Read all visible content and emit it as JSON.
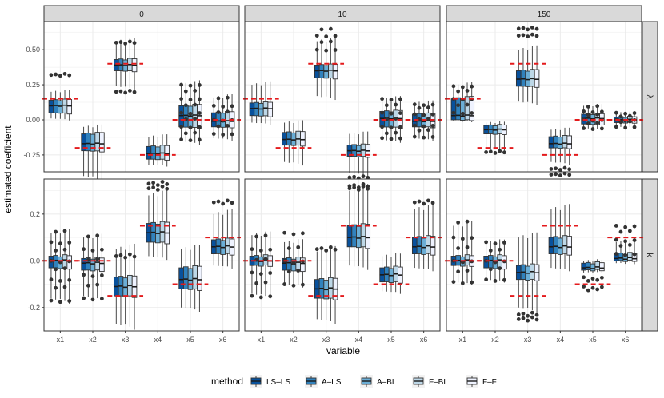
{
  "chart_data": {
    "type": "boxplot",
    "xlabel": "variable",
    "ylabel": "estimated coefficient",
    "categories": [
      "x1",
      "x2",
      "x3",
      "x4",
      "x5",
      "x6"
    ],
    "columns": [
      "0",
      "10",
      "150"
    ],
    "rows": [
      {
        "label": "λ",
        "ylim": [
          -0.37,
          0.7
        ],
        "ticks": [
          -0.25,
          0.0,
          0.25,
          0.5
        ],
        "tick_labels": [
          "-0.25",
          "0.00",
          "0.25",
          "0.50"
        ]
      },
      {
        "label": "k",
        "ylim": [
          -0.3,
          0.35
        ],
        "ticks": [
          -0.2,
          0.0,
          0.2
        ],
        "tick_labels": [
          "-0.2",
          "0.0",
          "0.2"
        ]
      }
    ],
    "legend": {
      "title": "method",
      "position": "bottom",
      "entries": [
        "LS–LS",
        "A–LS",
        "A–BL",
        "F–BL",
        "F–F"
      ],
      "colors": [
        "#08519c",
        "#3182bd",
        "#6baed6",
        "#bdd7e7",
        "#eff3ff"
      ]
    },
    "true_values": {
      "λ": [
        0.15,
        -0.2,
        0.4,
        -0.25,
        0.0,
        0.0
      ],
      "k": [
        0.0,
        0.0,
        -0.15,
        0.15,
        -0.1,
        0.1
      ]
    },
    "panels": [
      {
        "row": 0,
        "col": 0,
        "boxes": [
          {
            "q1": 0.05,
            "med": 0.1,
            "q3": 0.14,
            "lo": 0.01,
            "hi": 0.2,
            "out": [
              0.32
            ]
          },
          {
            "q1": -0.22,
            "med": -0.17,
            "q3": -0.1,
            "lo": -0.4,
            "hi": -0.05,
            "out": []
          },
          {
            "q1": 0.35,
            "med": 0.39,
            "q3": 0.43,
            "lo": 0.24,
            "hi": 0.56,
            "out": [
              0.2,
              0.55
            ]
          },
          {
            "q1": -0.28,
            "med": -0.24,
            "q3": -0.19,
            "lo": -0.32,
            "hi": -0.12,
            "out": []
          },
          {
            "q1": -0.05,
            "med": 0.03,
            "q3": 0.1,
            "lo": -0.15,
            "hi": 0.25,
            "out": [
              -0.14,
              -0.1,
              -0.05,
              0.0,
              0.05,
              0.1,
              0.15,
              0.2,
              0.25
            ]
          },
          {
            "q1": -0.05,
            "med": -0.01,
            "q3": 0.05,
            "lo": -0.13,
            "hi": 0.16,
            "out": [
              -0.1,
              -0.05,
              0.0,
              0.05,
              0.1,
              0.15
            ]
          }
        ]
      },
      {
        "row": 0,
        "col": 1,
        "boxes": [
          {
            "q1": 0.03,
            "med": 0.08,
            "q3": 0.12,
            "lo": -0.02,
            "hi": 0.25,
            "out": []
          },
          {
            "q1": -0.18,
            "med": -0.14,
            "q3": -0.09,
            "lo": -0.3,
            "hi": -0.02,
            "out": []
          },
          {
            "q1": 0.3,
            "med": 0.35,
            "q3": 0.39,
            "lo": 0.17,
            "hi": 0.56,
            "out": [
              0.5,
              0.55,
              0.6,
              0.64
            ]
          },
          {
            "q1": -0.26,
            "med": -0.22,
            "q3": -0.18,
            "lo": -0.38,
            "hi": -0.1,
            "out": [
              -0.41
            ]
          },
          {
            "q1": -0.05,
            "med": 0.01,
            "q3": 0.06,
            "lo": -0.14,
            "hi": 0.15,
            "out": [
              -0.13,
              -0.1,
              -0.05,
              0.0,
              0.05,
              0.1,
              0.15
            ]
          },
          {
            "q1": -0.05,
            "med": -0.01,
            "q3": 0.04,
            "lo": -0.13,
            "hi": 0.12,
            "out": [
              -0.12,
              -0.08,
              -0.04,
              0.0,
              0.04,
              0.08,
              0.11
            ]
          }
        ]
      },
      {
        "row": 0,
        "col": 2,
        "boxes": [
          {
            "q1": 0.0,
            "med": 0.03,
            "q3": 0.15,
            "lo": -0.01,
            "hi": 0.24,
            "out": [
              0.05,
              0.1,
              0.15,
              0.2,
              0.24
            ]
          },
          {
            "q1": -0.1,
            "med": -0.07,
            "q3": -0.04,
            "lo": -0.2,
            "hi": -0.02,
            "out": [
              -0.23
            ]
          },
          {
            "q1": 0.24,
            "med": 0.29,
            "q3": 0.35,
            "lo": 0.13,
            "hi": 0.5,
            "out": [
              0.6,
              0.65
            ]
          },
          {
            "q1": -0.2,
            "med": -0.17,
            "q3": -0.12,
            "lo": -0.3,
            "hi": -0.07,
            "out": [
              -0.35,
              -0.39
            ]
          },
          {
            "q1": -0.03,
            "med": 0.01,
            "q3": 0.04,
            "lo": -0.06,
            "hi": 0.1,
            "out": [
              -0.06,
              -0.03,
              0.0,
              0.03,
              0.06,
              0.09
            ]
          },
          {
            "q1": -0.02,
            "med": 0.0,
            "q3": 0.02,
            "lo": -0.05,
            "hi": 0.05,
            "out": [
              -0.05,
              -0.02,
              0.0,
              0.02,
              0.05
            ]
          }
        ]
      },
      {
        "row": 1,
        "col": 0,
        "boxes": [
          {
            "q1": -0.03,
            "med": 0.0,
            "q3": 0.02,
            "lo": -0.16,
            "hi": 0.12,
            "out": [
              -0.17,
              -0.12,
              -0.08,
              -0.04,
              0.0,
              0.04,
              0.08,
              0.12
            ]
          },
          {
            "q1": -0.04,
            "med": -0.01,
            "q3": 0.01,
            "lo": -0.15,
            "hi": 0.1,
            "out": [
              -0.16,
              -0.11,
              -0.06,
              0.0,
              0.05,
              0.1
            ]
          },
          {
            "q1": -0.15,
            "med": -0.11,
            "q3": -0.07,
            "lo": -0.27,
            "hi": 0.05,
            "out": [
              0.02
            ]
          },
          {
            "q1": 0.08,
            "med": 0.12,
            "q3": 0.16,
            "lo": 0.02,
            "hi": 0.28,
            "out": [
              0.31,
              0.33
            ]
          },
          {
            "q1": -0.12,
            "med": -0.08,
            "q3": -0.03,
            "lo": -0.2,
            "hi": 0.05,
            "out": []
          },
          {
            "q1": 0.03,
            "med": 0.06,
            "q3": 0.09,
            "lo": -0.02,
            "hi": 0.2,
            "out": [
              0.25
            ]
          }
        ]
      },
      {
        "row": 1,
        "col": 1,
        "boxes": [
          {
            "q1": -0.02,
            "med": 0.0,
            "q3": 0.02,
            "lo": -0.14,
            "hi": 0.11,
            "out": [
              -0.15,
              -0.1,
              -0.05,
              0.0,
              0.05,
              0.1
            ]
          },
          {
            "q1": -0.04,
            "med": -0.01,
            "q3": 0.01,
            "lo": -0.1,
            "hi": 0.08,
            "out": [
              -0.1,
              -0.05,
              0.0,
              0.05,
              0.12
            ]
          },
          {
            "q1": -0.16,
            "med": -0.12,
            "q3": -0.08,
            "lo": -0.25,
            "hi": 0.04,
            "out": [
              0.05
            ]
          },
          {
            "q1": 0.06,
            "med": 0.1,
            "q3": 0.15,
            "lo": -0.02,
            "hi": 0.3,
            "out": [
              0.31,
              0.32
            ]
          },
          {
            "q1": -0.09,
            "med": -0.06,
            "q3": -0.03,
            "lo": -0.13,
            "hi": 0.02,
            "out": []
          },
          {
            "q1": 0.03,
            "med": 0.06,
            "q3": 0.1,
            "lo": -0.03,
            "hi": 0.22,
            "out": [
              0.25
            ]
          }
        ]
      },
      {
        "row": 1,
        "col": 2,
        "boxes": [
          {
            "q1": -0.02,
            "med": 0.0,
            "q3": 0.02,
            "lo": -0.09,
            "hi": 0.15,
            "out": [
              -0.09,
              -0.05,
              0.0,
              0.05,
              0.1,
              0.16
            ]
          },
          {
            "q1": -0.03,
            "med": 0.0,
            "q3": 0.02,
            "lo": -0.08,
            "hi": 0.08,
            "out": [
              -0.08,
              -0.04,
              0.0,
              0.04,
              0.08
            ]
          },
          {
            "q1": -0.08,
            "med": -0.05,
            "q3": -0.02,
            "lo": -0.2,
            "hi": 0.1,
            "out": [
              -0.25,
              -0.23
            ]
          },
          {
            "q1": 0.03,
            "med": 0.06,
            "q3": 0.1,
            "lo": -0.03,
            "hi": 0.22,
            "out": []
          },
          {
            "q1": -0.04,
            "med": -0.03,
            "q3": -0.01,
            "lo": -0.05,
            "hi": 0.0,
            "out": [
              -0.07,
              -0.09,
              -0.11,
              -0.13
            ]
          },
          {
            "q1": 0.0,
            "med": 0.01,
            "q3": 0.03,
            "lo": -0.01,
            "hi": 0.08,
            "out": [
              0.03,
              0.06,
              0.09,
              0.12,
              0.15
            ]
          }
        ]
      }
    ]
  }
}
